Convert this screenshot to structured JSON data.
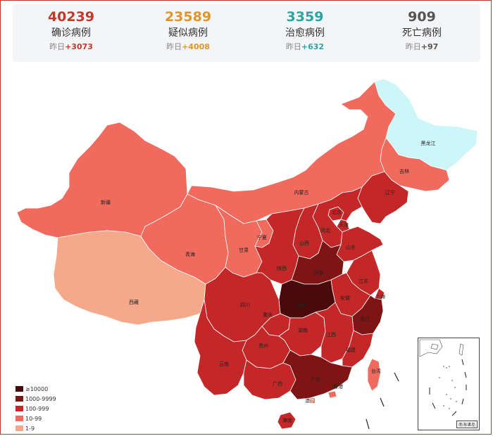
{
  "colors": {
    "level_10000": "#4a0a0a",
    "level_1000": "#7f1414",
    "level_100": "#c42727",
    "level_10": "#f06a5e",
    "level_1": "#f6a98a",
    "level_none": "#cdf6f8",
    "confirmed": "#c0392b",
    "suspected": "#e0952b",
    "cured": "#2aa5a5",
    "dead": "#555555"
  },
  "stats": [
    {
      "key": "confirmed",
      "value": "40239",
      "label": "确诊病例",
      "delta_prefix": "昨日",
      "delta": "+3073"
    },
    {
      "key": "suspected",
      "value": "23589",
      "label": "疑似病例",
      "delta_prefix": "昨日",
      "delta": "+4008"
    },
    {
      "key": "cured",
      "value": "3359",
      "label": "治愈病例",
      "delta_prefix": "昨日",
      "delta": "+632"
    },
    {
      "key": "dead",
      "value": "909",
      "label": "死亡病例",
      "delta_prefix": "昨日",
      "delta": "+97"
    }
  ],
  "legend": [
    {
      "label": "≥10000",
      "level": "level_10000"
    },
    {
      "label": "1000-9999",
      "level": "level_1000"
    },
    {
      "label": "100-999",
      "level": "level_100"
    },
    {
      "label": "10-99",
      "level": "level_10"
    },
    {
      "label": "1-9",
      "level": "level_1"
    }
  ],
  "provinces": [
    {
      "id": "heilongjiang",
      "name": "黑龙江",
      "level": "level_none"
    },
    {
      "id": "jilin",
      "name": "吉林",
      "level": "level_10"
    },
    {
      "id": "liaoning",
      "name": "辽宁",
      "level": "level_100"
    },
    {
      "id": "neimenggu",
      "name": "内蒙古",
      "level": "level_10"
    },
    {
      "id": "xinjiang",
      "name": "新疆",
      "level": "level_10"
    },
    {
      "id": "xizang",
      "name": "西藏",
      "level": "level_1"
    },
    {
      "id": "qinghai",
      "name": "青海",
      "level": "level_10"
    },
    {
      "id": "gansu",
      "name": "甘肃",
      "level": "level_10"
    },
    {
      "id": "ningxia",
      "name": "宁夏",
      "level": "level_10"
    },
    {
      "id": "beijing",
      "name": "北京",
      "level": "level_100"
    },
    {
      "id": "tianjin",
      "name": "天津",
      "level": "level_100"
    },
    {
      "id": "hebei",
      "name": "河北",
      "level": "level_100"
    },
    {
      "id": "shanxi",
      "name": "山西",
      "level": "level_100"
    },
    {
      "id": "shaanxi",
      "name": "陕西",
      "level": "level_100"
    },
    {
      "id": "shandong",
      "name": "山东",
      "level": "level_100"
    },
    {
      "id": "henan",
      "name": "河南",
      "level": "level_1000"
    },
    {
      "id": "jiangsu",
      "name": "江苏",
      "level": "level_100"
    },
    {
      "id": "shanghai",
      "name": "上海",
      "level": "level_100"
    },
    {
      "id": "anhui",
      "name": "安徽",
      "level": "level_100"
    },
    {
      "id": "hubei",
      "name": "湖北",
      "level": "level_10000"
    },
    {
      "id": "sichuan",
      "name": "四川",
      "level": "level_100"
    },
    {
      "id": "chongqing",
      "name": "重庆",
      "level": "level_100"
    },
    {
      "id": "zhejiang",
      "name": "浙江",
      "level": "level_1000"
    },
    {
      "id": "hunan",
      "name": "湖南",
      "level": "level_100"
    },
    {
      "id": "jiangxi",
      "name": "江西",
      "level": "level_100"
    },
    {
      "id": "guizhou",
      "name": "贵州",
      "level": "level_100"
    },
    {
      "id": "yunnan",
      "name": "云南",
      "level": "level_100"
    },
    {
      "id": "fujian",
      "name": "福建",
      "level": "level_100"
    },
    {
      "id": "guangxi",
      "name": "广西",
      "level": "level_100"
    },
    {
      "id": "guangdong",
      "name": "广东",
      "level": "level_1000"
    },
    {
      "id": "xianggang",
      "name": "香港",
      "level": "level_10"
    },
    {
      "id": "aomen",
      "name": "澳门",
      "level": "level_1"
    },
    {
      "id": "hainan",
      "name": "海南",
      "level": "level_100"
    },
    {
      "id": "taiwan",
      "name": "台湾",
      "level": "level_10"
    }
  ],
  "inset_title": "南海诸岛"
}
